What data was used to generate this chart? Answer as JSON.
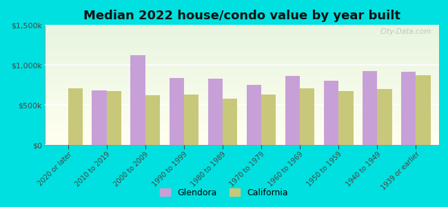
{
  "title": "Median 2022 house/condo value by year built",
  "categories": [
    "2020 or later",
    "2010 to 2019",
    "2000 to 2009",
    "1990 to 1999",
    "1980 to 1989",
    "1970 to 1979",
    "1960 to 1969",
    "1950 to 1959",
    "1940 to 1949",
    "1939 or earlier"
  ],
  "glendora": [
    0,
    680000,
    1120000,
    840000,
    830000,
    750000,
    860000,
    800000,
    920000,
    910000
  ],
  "california": [
    710000,
    675000,
    625000,
    630000,
    580000,
    630000,
    710000,
    670000,
    695000,
    870000
  ],
  "glendora_color": "#c8a0d8",
  "california_color": "#c8c87a",
  "background_color": "#00e0e0",
  "ylim": [
    0,
    1500000
  ],
  "yticks": [
    0,
    500000,
    1000000,
    1500000
  ],
  "bar_width": 0.38,
  "title_fontsize": 13,
  "legend_labels": [
    "Glendora",
    "California"
  ],
  "watermark": "City-Data.com"
}
